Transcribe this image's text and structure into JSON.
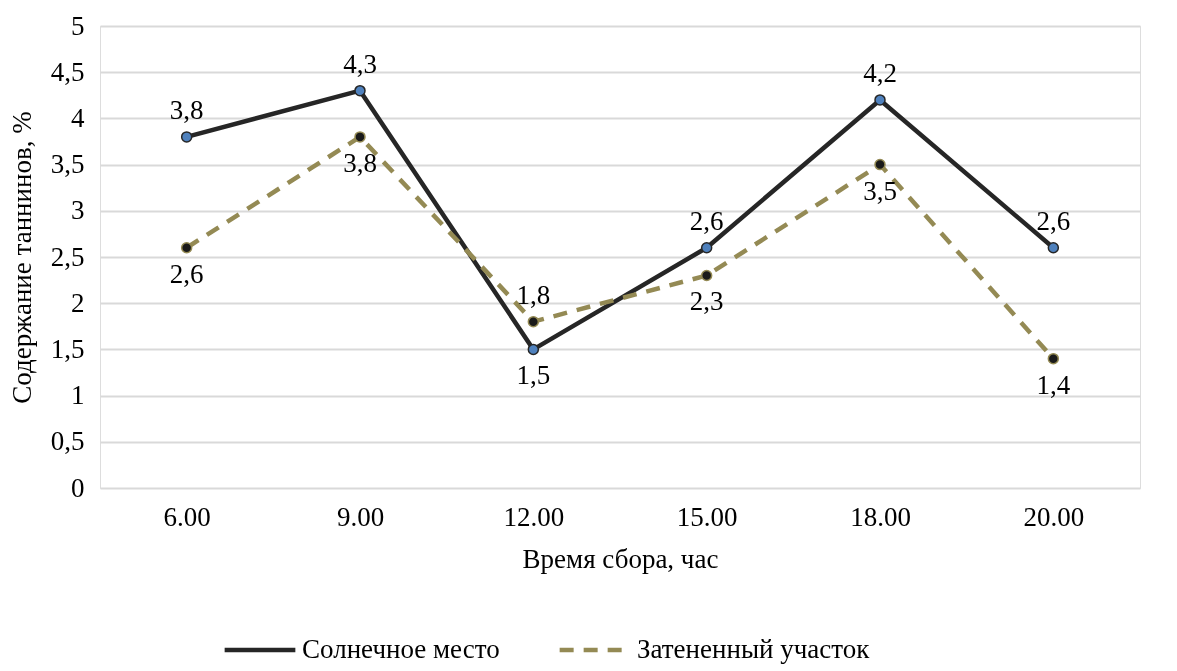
{
  "chart_data": {
    "type": "line",
    "xlabel": "Время сбора, час",
    "ylabel": "Содержание таннинов, %",
    "categories": [
      "6.00",
      "9.00",
      "12.00",
      "15.00",
      "18.00",
      "20.00"
    ],
    "series": [
      {
        "name": "Солнечное место",
        "color": "#262626",
        "line_style": "solid",
        "values": [
          3.8,
          4.3,
          1.5,
          2.6,
          4.2,
          2.6
        ],
        "value_labels": [
          "3,8",
          "4,3",
          "1,5",
          "2,6",
          "4,2",
          "2,6"
        ]
      },
      {
        "name": "Затененный участок",
        "color": "#948a54",
        "line_style": "dashed",
        "values": [
          2.6,
          3.8,
          1.8,
          2.3,
          3.5,
          1.4
        ],
        "value_labels": [
          "2,6",
          "3,8",
          "1,8",
          "2,3",
          "3,5",
          "1,4"
        ]
      }
    ],
    "ylim": [
      0,
      5
    ],
    "yticks": [
      0,
      {
        "value": 0.5,
        "label": "0,5"
      },
      1,
      {
        "value": 1.5,
        "label": "1,5"
      },
      2,
      {
        "value": 2.5,
        "label": "2,5"
      },
      3,
      {
        "value": 3.5,
        "label": "3,5"
      },
      4,
      {
        "value": 4.5,
        "label": "4,5"
      },
      5
    ],
    "grid": "y",
    "legend": "bottom",
    "marker": "circle"
  }
}
